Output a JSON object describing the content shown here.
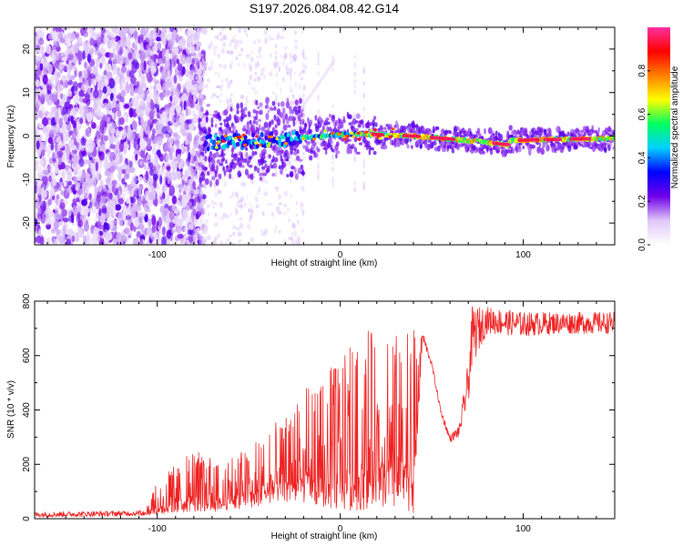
{
  "title": "S197.2026.084.08.42.G14",
  "chart_data": [
    {
      "type": "heatmap",
      "name": "spectrogram",
      "xlabel": "Height of straight line (km)",
      "ylabel": "Frequency (Hz)",
      "xlim": [
        -167,
        150
      ],
      "ylim": [
        -25,
        25
      ],
      "xticks": [
        -100,
        0,
        100
      ],
      "yticks": [
        -20,
        -10,
        0,
        10,
        20
      ],
      "colorbar": {
        "label": "Normalized spectral amplitude",
        "range": [
          0,
          1
        ],
        "ticks": [
          "0.0",
          "0.2",
          "0.4",
          "0.6",
          "0.8"
        ],
        "tick_values": [
          0,
          0.2,
          0.4,
          0.6,
          0.8
        ],
        "colormap": [
          "#ffffff",
          "#e0c8f8",
          "#7000e8",
          "#0000ff",
          "#00d0ff",
          "#00ff60",
          "#ffff00",
          "#ff8000",
          "#ff0000",
          "#ff30a0"
        ]
      },
      "features": {
        "noise_region_x": [
          -167,
          -77
        ],
        "carrier_track": [
          {
            "x": -70,
            "f": -1.5
          },
          {
            "x": -40,
            "f": -1.0
          },
          {
            "x": -10,
            "f": 0.0
          },
          {
            "x": 10,
            "f": 0.5
          },
          {
            "x": 40,
            "f": 0.0
          },
          {
            "x": 70,
            "f": -1.0
          },
          {
            "x": 92,
            "f": -2.0
          },
          {
            "x": 93,
            "f": -1.0
          },
          {
            "x": 150,
            "f": -0.5
          }
        ],
        "peak_amplitude_x": [
          40,
          150
        ]
      }
    },
    {
      "type": "line",
      "name": "snr",
      "xlabel": "Height of straight line (km)",
      "ylabel": "SNR (10 * v/v)",
      "xlim": [
        -167,
        150
      ],
      "ylim": [
        0,
        800
      ],
      "xticks": [
        -100,
        0,
        100
      ],
      "yticks": [
        0,
        200,
        400,
        600,
        800
      ],
      "color": "#ee2222",
      "envelope": {
        "x": [
          -167,
          -110,
          -100,
          -90,
          -80,
          -70,
          -60,
          -50,
          -40,
          -30,
          -20,
          -10,
          0,
          10,
          20,
          30,
          40,
          45,
          50,
          55,
          60,
          65,
          70,
          72,
          80,
          100,
          120,
          150
        ],
        "low": [
          5,
          10,
          15,
          20,
          25,
          25,
          30,
          40,
          50,
          60,
          60,
          40,
          30,
          30,
          40,
          30,
          20,
          650,
          560,
          380,
          280,
          300,
          420,
          560,
          680,
          670,
          680,
          680
        ],
        "high": [
          25,
          30,
          130,
          200,
          250,
          230,
          230,
          270,
          330,
          380,
          480,
          490,
          620,
          670,
          720,
          690,
          720,
          700,
          580,
          410,
          310,
          350,
          600,
          780,
          780,
          760,
          760,
          760
        ]
      }
    }
  ]
}
